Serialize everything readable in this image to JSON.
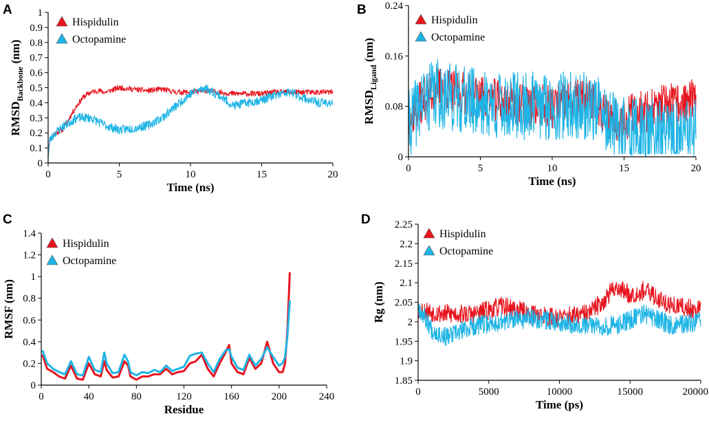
{
  "colors": {
    "hispidulin": "#e8141e",
    "octopamine": "#1eb4e6",
    "axis": "#000000"
  },
  "chart_data": [
    {
      "id": "A",
      "type": "line",
      "panel_label": "A",
      "xlabel": "Time (ns)",
      "ylabel_main": "RMSD",
      "ylabel_sub": "Backbone",
      "ylabel_unit": " (nm)",
      "xlim": [
        0,
        20
      ],
      "ylim": [
        0,
        1
      ],
      "xticks": [
        0,
        5,
        10,
        15,
        20
      ],
      "xtick_labels": [
        "0",
        "5",
        "10",
        "15",
        "20"
      ],
      "yticks": [
        0,
        0.1,
        0.2,
        0.3,
        0.4,
        0.5,
        0.6,
        0.7,
        0.8,
        0.9,
        1
      ],
      "ytick_labels": [
        "0",
        "0.1",
        "0.2",
        "0.3",
        "0.4",
        "0.5",
        "0.6",
        "0.7",
        "0.8",
        "0.9",
        "1"
      ],
      "legend": [
        "Hispidulin",
        "Octopamine"
      ],
      "series": [
        {
          "name": "Hispidulin",
          "noise": 0.018,
          "seed": 11,
          "x": [
            0,
            0.1,
            0.5,
            1,
            1.5,
            2,
            2.5,
            3,
            3.5,
            4,
            5,
            6,
            7,
            8,
            9,
            10,
            11,
            12,
            13,
            14,
            15,
            16,
            17,
            18,
            19,
            20
          ],
          "y": [
            0.05,
            0.15,
            0.2,
            0.22,
            0.3,
            0.38,
            0.44,
            0.47,
            0.48,
            0.47,
            0.5,
            0.49,
            0.48,
            0.49,
            0.47,
            0.47,
            0.48,
            0.47,
            0.46,
            0.46,
            0.46,
            0.47,
            0.47,
            0.47,
            0.47,
            0.47
          ]
        },
        {
          "name": "Octopamine",
          "noise": 0.03,
          "seed": 23,
          "x": [
            0,
            0.1,
            0.5,
            1,
            2,
            3,
            4,
            5,
            6,
            7,
            8,
            9,
            10,
            11,
            12,
            13,
            14,
            15,
            16,
            17,
            18,
            19,
            20
          ],
          "y": [
            0.05,
            0.15,
            0.2,
            0.24,
            0.3,
            0.3,
            0.25,
            0.22,
            0.23,
            0.25,
            0.3,
            0.38,
            0.46,
            0.5,
            0.45,
            0.38,
            0.4,
            0.42,
            0.45,
            0.47,
            0.43,
            0.4,
            0.4
          ]
        }
      ]
    },
    {
      "id": "B",
      "type": "line",
      "panel_label": "B",
      "xlabel": "Time (ns)",
      "ylabel_main": "RMSD",
      "ylabel_sub": "Ligand",
      "ylabel_unit": " (nm)",
      "xlim": [
        0,
        20
      ],
      "ylim": [
        0,
        0.24
      ],
      "xticks": [
        0,
        5,
        10,
        15,
        20
      ],
      "xtick_labels": [
        "0",
        "5",
        "10",
        "15",
        "20"
      ],
      "yticks": [
        0,
        0.08,
        0.16,
        0.24
      ],
      "ytick_labels": [
        "0",
        "0.08",
        "0.16",
        "0.24"
      ],
      "legend": [
        "Hispidulin",
        "Octopamine"
      ],
      "series": [
        {
          "name": "Hispidulin",
          "noise": 0.035,
          "seed": 37,
          "x": [
            0,
            1,
            2,
            4,
            6,
            8,
            10,
            12,
            13,
            14,
            15,
            16,
            18,
            20
          ],
          "y": [
            0.06,
            0.09,
            0.11,
            0.1,
            0.09,
            0.08,
            0.08,
            0.09,
            0.09,
            0.06,
            0.06,
            0.07,
            0.08,
            0.09
          ]
        },
        {
          "name": "Octopamine",
          "noise": 0.055,
          "seed": 41,
          "x": [
            0,
            1,
            2,
            4,
            6,
            8,
            10,
            12,
            13,
            14,
            15,
            16,
            18,
            20
          ],
          "y": [
            0.05,
            0.09,
            0.1,
            0.09,
            0.08,
            0.08,
            0.08,
            0.08,
            0.08,
            0.05,
            0.04,
            0.04,
            0.035,
            0.035
          ]
        }
      ]
    },
    {
      "id": "C",
      "type": "line",
      "panel_label": "C",
      "xlabel": "Residue",
      "ylabel_main": "RMSF (nm)",
      "ylabel_sub": "",
      "ylabel_unit": "",
      "xlim": [
        0,
        240
      ],
      "ylim": [
        0,
        1.4
      ],
      "xticks": [
        0,
        40,
        80,
        120,
        160,
        200,
        240
      ],
      "xtick_labels": [
        "0",
        "40",
        "80",
        "120",
        "160",
        "200",
        "240"
      ],
      "yticks": [
        0,
        0.2,
        0.4,
        0.6,
        0.8,
        1,
        1.2,
        1.4
      ],
      "ytick_labels": [
        "0",
        "0.2",
        "0.4",
        "0.6",
        "0.8",
        "1",
        "1.2",
        "1.4"
      ],
      "legend": [
        "Hispidulin",
        "Octopamine"
      ],
      "series": [
        {
          "name": "Hispidulin",
          "noise": 0.0,
          "seed": 1,
          "x": [
            1,
            5,
            10,
            15,
            20,
            25,
            30,
            35,
            40,
            45,
            50,
            53,
            55,
            60,
            65,
            70,
            73,
            75,
            80,
            85,
            90,
            95,
            100,
            105,
            110,
            115,
            120,
            125,
            130,
            135,
            140,
            145,
            150,
            155,
            158,
            160,
            165,
            170,
            175,
            180,
            185,
            190,
            195,
            200,
            203,
            205,
            207,
            209
          ],
          "y": [
            0.28,
            0.15,
            0.12,
            0.08,
            0.06,
            0.18,
            0.06,
            0.05,
            0.2,
            0.1,
            0.08,
            0.22,
            0.14,
            0.07,
            0.08,
            0.22,
            0.18,
            0.08,
            0.05,
            0.08,
            0.08,
            0.1,
            0.1,
            0.15,
            0.1,
            0.12,
            0.13,
            0.2,
            0.22,
            0.28,
            0.15,
            0.08,
            0.2,
            0.3,
            0.37,
            0.2,
            0.12,
            0.1,
            0.25,
            0.15,
            0.2,
            0.4,
            0.2,
            0.12,
            0.12,
            0.2,
            0.5,
            1.04
          ]
        },
        {
          "name": "Octopamine",
          "noise": 0.0,
          "seed": 2,
          "x": [
            1,
            5,
            10,
            15,
            20,
            25,
            30,
            35,
            40,
            45,
            50,
            53,
            55,
            60,
            65,
            70,
            73,
            75,
            80,
            85,
            90,
            95,
            100,
            105,
            110,
            115,
            120,
            125,
            130,
            135,
            140,
            145,
            150,
            155,
            158,
            160,
            165,
            170,
            175,
            180,
            185,
            190,
            195,
            200,
            203,
            205,
            207,
            209
          ],
          "y": [
            0.32,
            0.2,
            0.15,
            0.12,
            0.1,
            0.22,
            0.1,
            0.09,
            0.26,
            0.14,
            0.12,
            0.3,
            0.2,
            0.11,
            0.12,
            0.28,
            0.22,
            0.12,
            0.09,
            0.12,
            0.11,
            0.14,
            0.12,
            0.18,
            0.13,
            0.15,
            0.17,
            0.27,
            0.29,
            0.3,
            0.2,
            0.12,
            0.24,
            0.32,
            0.33,
            0.26,
            0.16,
            0.14,
            0.28,
            0.18,
            0.24,
            0.35,
            0.26,
            0.18,
            0.2,
            0.26,
            0.45,
            0.78
          ]
        }
      ]
    },
    {
      "id": "D",
      "type": "line",
      "panel_label": "D",
      "xlabel": "Time (ps)",
      "ylabel_main": "Rg (nm)",
      "ylabel_sub": "",
      "ylabel_unit": "",
      "xlim": [
        0,
        20000
      ],
      "ylim": [
        1.85,
        2.25
      ],
      "xticks": [
        0,
        5000,
        10000,
        15000,
        20000
      ],
      "xtick_labels": [
        "0",
        "5000",
        "10000",
        "15000",
        "20000"
      ],
      "yticks": [
        1.85,
        1.9,
        1.95,
        2,
        2.05,
        2.1,
        2.15,
        2.2,
        2.25
      ],
      "ytick_labels": [
        "1.85",
        "1.9",
        "1.95",
        "2",
        "2.05",
        "2.1",
        "2.15",
        "2.2",
        "2.25"
      ],
      "legend": [
        "Hispidulin",
        "Octopamine"
      ],
      "series": [
        {
          "name": "Hispidulin",
          "noise": 0.025,
          "seed": 53,
          "x": [
            0,
            2000,
            4000,
            6000,
            8000,
            10000,
            12000,
            13000,
            14000,
            15000,
            16000,
            17000,
            18000,
            20000
          ],
          "y": [
            2.03,
            2.02,
            2.02,
            2.04,
            2.02,
            2.01,
            2.02,
            2.05,
            2.09,
            2.07,
            2.08,
            2.06,
            2.04,
            2.03
          ]
        },
        {
          "name": "Octopamine",
          "noise": 0.025,
          "seed": 67,
          "x": [
            0,
            1000,
            2000,
            4000,
            6000,
            8000,
            10000,
            12000,
            14000,
            16000,
            18000,
            20000
          ],
          "y": [
            2.04,
            1.98,
            1.96,
            1.99,
            2.0,
            2.01,
            2.0,
            1.99,
            1.99,
            2.02,
            1.99,
            2.0
          ]
        }
      ]
    }
  ]
}
